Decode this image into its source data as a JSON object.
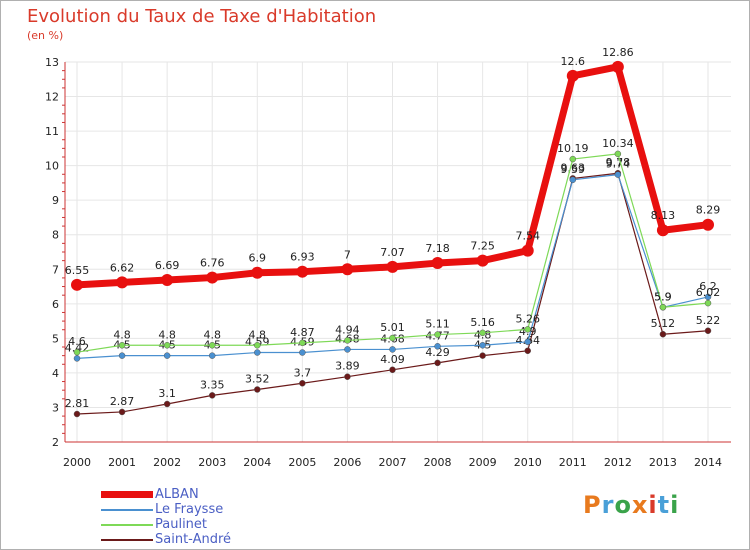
{
  "title": "Evolution du Taux de Taxe d'Habitation",
  "subtitle": "(en %)",
  "logo": {
    "text": "Proxiti",
    "colors": [
      "#e87a1e",
      "#4aa0d8",
      "#3aa34a",
      "#e87a1e",
      "#d93a2a",
      "#4aa0d8",
      "#3aa34a"
    ]
  },
  "chart_data": {
    "type": "line",
    "x": [
      "2000",
      "2001",
      "2002",
      "2003",
      "2004",
      "2005",
      "2006",
      "2007",
      "2008",
      "2009",
      "2010",
      "2011",
      "2012",
      "2013",
      "2014"
    ],
    "ylim": [
      2,
      13
    ],
    "yticks": [
      2,
      3,
      4,
      5,
      6,
      7,
      8,
      9,
      10,
      11,
      12,
      13
    ],
    "grid": true,
    "legend_position": "bottom-left",
    "series": [
      {
        "name": "Saint-André",
        "color": "#6b1a1a",
        "width": 1.2,
        "values": [
          2.81,
          2.87,
          3.1,
          3.35,
          3.52,
          3.7,
          3.89,
          4.09,
          4.29,
          4.5,
          4.64,
          9.63,
          9.78,
          5.12,
          5.22
        ],
        "labels": [
          "2.81",
          "2.87",
          "3.1",
          "3.35",
          "3.52",
          "3.7",
          "3.89",
          "4.09",
          "4.29",
          "4.5",
          "4.64",
          "9.63",
          "9.78",
          "5.12",
          "5.22"
        ]
      },
      {
        "name": "Le Fraysse",
        "color": "#4a90d0",
        "width": 1.2,
        "values": [
          4.42,
          4.5,
          4.5,
          4.5,
          4.59,
          4.59,
          4.68,
          4.68,
          4.77,
          4.8,
          4.9,
          9.59,
          9.74,
          5.9,
          6.2
        ],
        "labels": [
          "4.42",
          "4.5",
          "4.5",
          "4.5",
          "4.59",
          "4.59",
          "4.68",
          "4.68",
          "4.77",
          "4.8",
          "4.9",
          "9.59",
          "9.74",
          "5.9",
          "6.2"
        ]
      },
      {
        "name": "Paulinet",
        "color": "#7ed957",
        "width": 1.2,
        "values": [
          4.6,
          4.8,
          4.8,
          4.8,
          4.8,
          4.87,
          4.94,
          5.01,
          5.11,
          5.16,
          5.26,
          10.19,
          10.34,
          5.9,
          6.02
        ],
        "labels": [
          "4.6",
          "4.8",
          "4.8",
          "4.8",
          "4.8",
          "4.87",
          "4.94",
          "5.01",
          "5.11",
          "5.16",
          "5.26",
          "10.19",
          "10.34",
          "5.9",
          "6.02"
        ]
      },
      {
        "name": "ALBAN",
        "color": "#e8100f",
        "width": 7,
        "values": [
          6.55,
          6.62,
          6.69,
          6.76,
          6.9,
          6.93,
          7.0,
          7.07,
          7.18,
          7.25,
          7.54,
          12.6,
          12.86,
          8.13,
          8.29
        ],
        "labels": [
          "6.55",
          "6.62",
          "6.69",
          "6.76",
          "6.9",
          "6.93",
          "7",
          "7.07",
          "7.18",
          "7.25",
          "7.54",
          "12.6",
          "12.86",
          "8.13",
          "8.29"
        ]
      }
    ],
    "legend_order": [
      "ALBAN",
      "Le Fraysse",
      "Paulinet",
      "Saint-André"
    ]
  }
}
